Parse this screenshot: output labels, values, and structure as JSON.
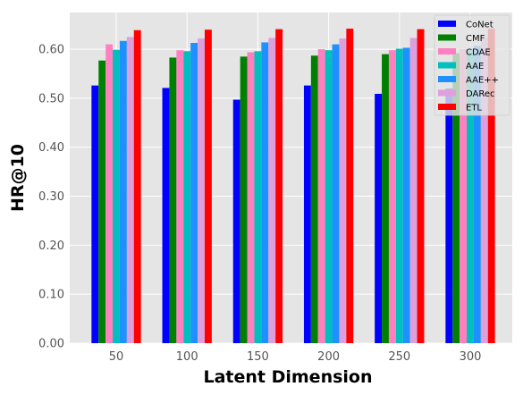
{
  "chart_data": {
    "type": "bar",
    "title": "",
    "xlabel": "Latent Dimension",
    "ylabel": "HR@10",
    "categories": [
      "50",
      "100",
      "150",
      "200",
      "250",
      "300"
    ],
    "ylim": [
      0,
      0.675
    ],
    "yticks": [
      "0.00",
      "0.10",
      "0.20",
      "0.30",
      "0.40",
      "0.50",
      "0.60"
    ],
    "grid": true,
    "legend_position": "top-right",
    "series": [
      {
        "name": "CoNet",
        "color": "#0000ff",
        "values": [
          0.526,
          0.521,
          0.497,
          0.526,
          0.509,
          0.52
        ]
      },
      {
        "name": "CMF",
        "color": "#008000",
        "values": [
          0.577,
          0.583,
          0.585,
          0.587,
          0.59,
          0.592
        ]
      },
      {
        "name": "CDAE",
        "color": "#ff7fbf",
        "values": [
          0.61,
          0.598,
          0.594,
          0.6,
          0.598,
          0.6
        ]
      },
      {
        "name": "AAE",
        "color": "#00bfbf",
        "values": [
          0.599,
          0.596,
          0.596,
          0.598,
          0.601,
          0.6
        ]
      },
      {
        "name": "AAE++",
        "color": "#1e90ff",
        "values": [
          0.617,
          0.613,
          0.614,
          0.61,
          0.603,
          0.607
        ]
      },
      {
        "name": "DARec",
        "color": "#dda0dd",
        "values": [
          0.625,
          0.622,
          0.623,
          0.622,
          0.623,
          0.624
        ]
      },
      {
        "name": "ETL",
        "color": "#ff0000",
        "values": [
          0.639,
          0.64,
          0.641,
          0.642,
          0.641,
          0.642
        ]
      }
    ]
  }
}
